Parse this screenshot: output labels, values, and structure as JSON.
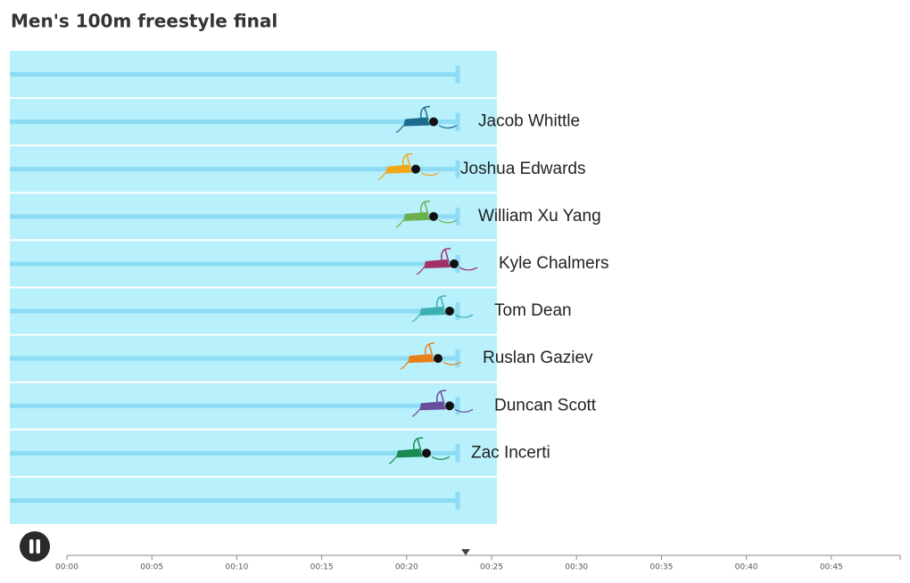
{
  "title": "Men's 100m freestyle final",
  "swimmers": [
    {
      "name": "Jacob Whittle",
      "color": "#1d6b8c"
    },
    {
      "name": "Joshua Edwards",
      "color": "#f0a818"
    },
    {
      "name": "William Xu Yang",
      "color": "#6ab04c"
    },
    {
      "name": "Kyle Chalmers",
      "color": "#a3306a"
    },
    {
      "name": "Tom Dean",
      "color": "#3ab0b0"
    },
    {
      "name": "Ruslan Gaziev",
      "color": "#e8801a"
    },
    {
      "name": "Duncan Scott",
      "color": "#6a4c9c"
    },
    {
      "name": "Zac Incerti",
      "color": "#1a8a50"
    }
  ],
  "timeline": {
    "ticks": [
      "00:00",
      "00:05",
      "00:10",
      "00:15",
      "00:20",
      "00:25",
      "00:30",
      "00:35",
      "00:40",
      "00:45"
    ]
  }
}
